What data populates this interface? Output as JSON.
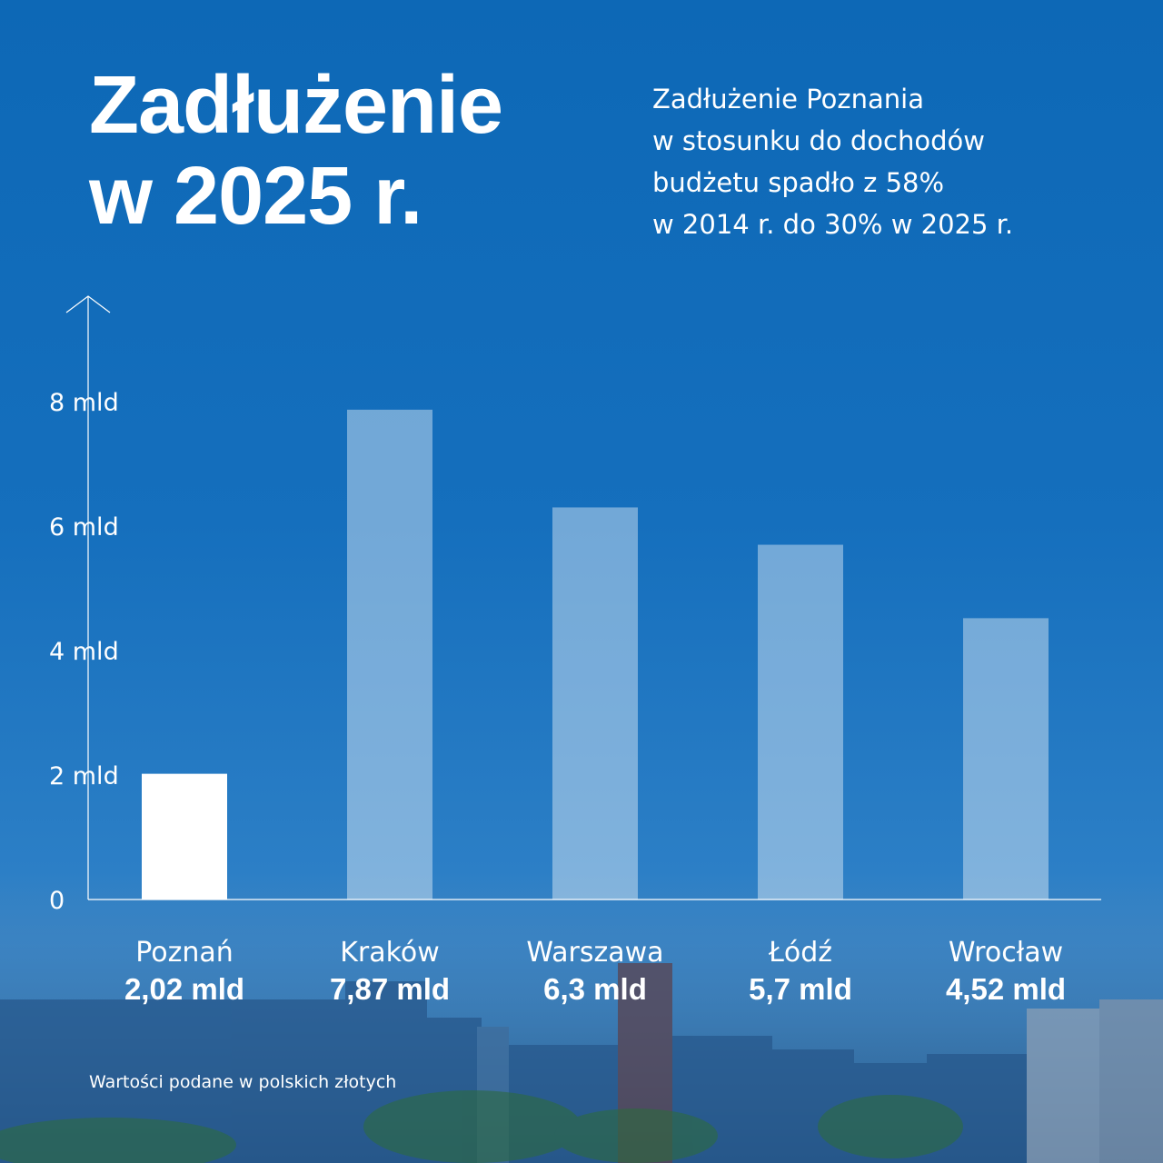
{
  "header": {
    "title_line1": "Zadłużenie",
    "title_line2": "w 2025 r.",
    "subtitle_lines": [
      "Zadłużenie Poznania",
      "w stosunku do dochodów",
      "budżetu spadło z 58%",
      "w 2014 r. do 30% w 2025 r."
    ]
  },
  "footnote": "Wartości podane w polskich złotych",
  "colors": {
    "highlight_bar": "#ffffff",
    "other_bars": "rgba(255,255,255,0.40)",
    "axis": "#ffffff"
  },
  "chart_data": {
    "type": "bar",
    "categories": [
      "Poznań",
      "Kraków",
      "Warszawa",
      "Łódź",
      "Wrocław"
    ],
    "values": [
      2.02,
      7.87,
      6.3,
      5.7,
      4.52
    ],
    "value_labels": [
      "2,02 mld",
      "7,87 mld",
      "6,3 mld",
      "5,7 mld",
      "4,52 mld"
    ],
    "highlight_index": 0,
    "yticks": [
      0,
      2,
      4,
      6,
      8
    ],
    "ytick_labels": [
      "0",
      "2 mld",
      "4 mld",
      "6 mld",
      "8 mld"
    ],
    "ylim": [
      0,
      8
    ],
    "title": "",
    "xlabel": "",
    "ylabel": "",
    "grid": false,
    "unit": "mld zł"
  }
}
